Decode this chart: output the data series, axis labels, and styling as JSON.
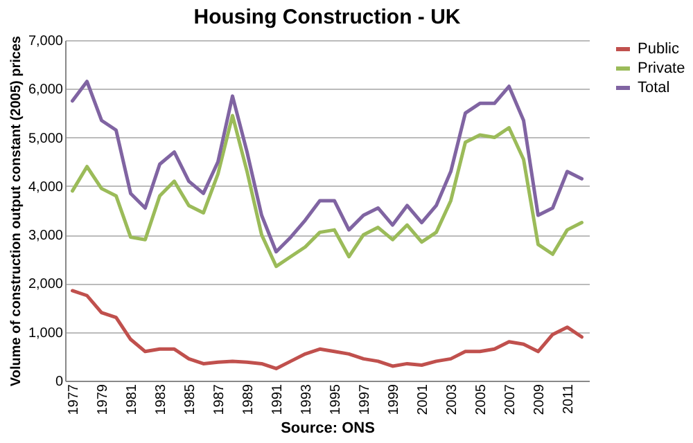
{
  "chart_data": {
    "type": "line",
    "title": "Housing Construction - UK",
    "ylabel": "Volume of construction output constant (2005) prices",
    "annotations": [
      "Source: ONS"
    ],
    "categories": [
      "1977",
      null,
      "1979",
      null,
      "1981",
      null,
      "1983",
      null,
      "1985",
      null,
      "1987",
      null,
      "1989",
      null,
      "1991",
      null,
      "1993",
      null,
      "1995",
      null,
      "1997",
      null,
      "1999",
      null,
      "2001",
      null,
      "2003",
      null,
      "2005",
      null,
      "2007",
      null,
      "2009",
      null,
      "2011",
      null
    ],
    "series": [
      {
        "name": "Public",
        "color": "#c0504d",
        "values": [
          1850,
          1750,
          1400,
          1300,
          850,
          600,
          650,
          650,
          450,
          350,
          380,
          400,
          380,
          350,
          250,
          400,
          550,
          650,
          600,
          550,
          450,
          400,
          300,
          350,
          320,
          400,
          450,
          600,
          600,
          650,
          800,
          750,
          600,
          950,
          1100,
          900
        ]
      },
      {
        "name": "Private",
        "color": "#9bbb59",
        "values": [
          3900,
          4400,
          3950,
          3800,
          2950,
          2900,
          3800,
          4100,
          3600,
          3450,
          4250,
          5450,
          4300,
          3000,
          2350,
          2550,
          2750,
          3050,
          3100,
          2550,
          3000,
          3150,
          2900,
          3200,
          2850,
          3050,
          3700,
          4900,
          5050,
          5000,
          5200,
          4550,
          2800,
          2600,
          3100,
          3250
        ]
      },
      {
        "name": "Total",
        "color": "#8064a2",
        "values": [
          5750,
          6150,
          5350,
          5150,
          3850,
          3550,
          4450,
          4700,
          4100,
          3850,
          4500,
          5850,
          4700,
          3400,
          2650,
          2950,
          3300,
          3700,
          3700,
          3100,
          3400,
          3550,
          3200,
          3600,
          3250,
          3600,
          4300,
          5500,
          5700,
          5700,
          6050,
          5350,
          3400,
          3550,
          4300,
          4150
        ]
      }
    ],
    "ylim": [
      0,
      7000
    ],
    "yticks": [
      {
        "value": 0,
        "label": "0"
      },
      {
        "value": 1000,
        "label": "1,000"
      },
      {
        "value": 2000,
        "label": "2,000"
      },
      {
        "value": 3000,
        "label": "3,000"
      },
      {
        "value": 4000,
        "label": "4,000"
      },
      {
        "value": 5000,
        "label": "5,000"
      },
      {
        "value": 6000,
        "label": "6,000"
      },
      {
        "value": 7000,
        "label": "7,000"
      }
    ],
    "grid": "y",
    "legend": "right",
    "marker": "none",
    "line_style": "solid"
  }
}
